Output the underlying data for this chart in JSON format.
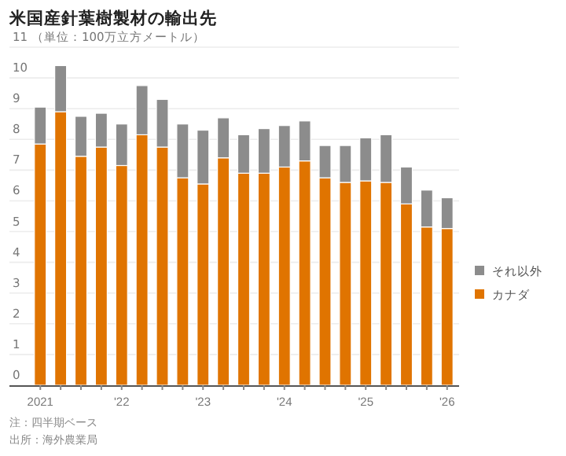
{
  "chart_data": {
    "type": "bar",
    "stacked": true,
    "title": "米国産針葉樹製材の輸出先",
    "ylabel": "（単位：100万立方メートル）",
    "categories": [
      "2021",
      null,
      null,
      null,
      "'22",
      null,
      null,
      null,
      "'23",
      null,
      null,
      null,
      "'24",
      null,
      null,
      null,
      "'25",
      null,
      null,
      null,
      "'26"
    ],
    "series": [
      {
        "name": "カナダ",
        "color": "#e07400",
        "values": [
          7.85,
          8.9,
          7.45,
          7.75,
          7.15,
          8.15,
          7.75,
          6.75,
          6.55,
          7.4,
          6.9,
          6.9,
          7.1,
          7.3,
          6.75,
          6.6,
          6.65,
          6.6,
          5.9,
          5.15,
          5.1
        ]
      },
      {
        "name": "それ以外",
        "color": "#8c8c8c",
        "values": [
          1.2,
          1.5,
          1.3,
          1.1,
          1.35,
          1.6,
          1.55,
          1.75,
          1.75,
          1.3,
          1.25,
          1.45,
          1.35,
          1.3,
          1.05,
          1.2,
          1.4,
          1.55,
          1.2,
          1.2,
          1.0
        ]
      }
    ],
    "ylim": [
      0,
      11
    ],
    "yticks": [
      0,
      1,
      2,
      3,
      4,
      5,
      6,
      7,
      8,
      9,
      10,
      11
    ],
    "grid": "y",
    "legend": "right",
    "annotations": [
      "注：四半期ベース",
      "出所：海外農業局"
    ]
  }
}
